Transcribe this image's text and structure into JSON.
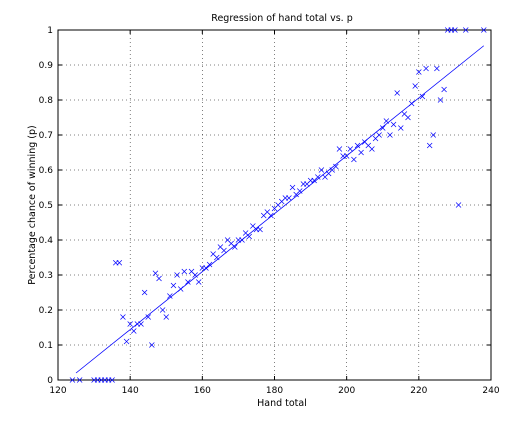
{
  "chart_data": {
    "type": "scatter",
    "title": "Regression of hand total vs. p",
    "xlabel": "Hand total",
    "ylabel": "Percentage chance of winning (p)",
    "xlim": [
      120,
      240
    ],
    "ylim": [
      0,
      1
    ],
    "x_ticks": [
      120,
      140,
      160,
      180,
      200,
      220,
      240
    ],
    "y_ticks": [
      0,
      0.1,
      0.2,
      0.3,
      0.4,
      0.5,
      0.6,
      0.7,
      0.8,
      0.9,
      1
    ],
    "x_tick_labels": [
      "120",
      "140",
      "160",
      "180",
      "200",
      "220",
      "240"
    ],
    "y_tick_labels": [
      "0",
      "0.1",
      "0.2",
      "0.3",
      "0.4",
      "0.5",
      "0.6",
      "0.7",
      "0.8",
      "0.9",
      "1"
    ],
    "grid": true,
    "marker": "x",
    "marker_color": "#0000ff",
    "series": [
      {
        "kind": "scatter",
        "points": [
          [
            124,
            0
          ],
          [
            126,
            0
          ],
          [
            130,
            0
          ],
          [
            131,
            0
          ],
          [
            132,
            0
          ],
          [
            133,
            0
          ],
          [
            134,
            0
          ],
          [
            135,
            0
          ],
          [
            136,
            0.335
          ],
          [
            137,
            0.335
          ],
          [
            138,
            0.18
          ],
          [
            139,
            0.11
          ],
          [
            140,
            0.16
          ],
          [
            141,
            0.14
          ],
          [
            142,
            0.16
          ],
          [
            143,
            0.16
          ],
          [
            144,
            0.25
          ],
          [
            145,
            0.18
          ],
          [
            146,
            0.1
          ],
          [
            147,
            0.305
          ],
          [
            148,
            0.29
          ],
          [
            149,
            0.2
          ],
          [
            150,
            0.18
          ],
          [
            151,
            0.24
          ],
          [
            152,
            0.27
          ],
          [
            153,
            0.3
          ],
          [
            154,
            0.26
          ],
          [
            155,
            0.31
          ],
          [
            156,
            0.28
          ],
          [
            157,
            0.31
          ],
          [
            158,
            0.3
          ],
          [
            159,
            0.28
          ],
          [
            160,
            0.32
          ],
          [
            161,
            0.32
          ],
          [
            162,
            0.33
          ],
          [
            163,
            0.36
          ],
          [
            164,
            0.35
          ],
          [
            165,
            0.38
          ],
          [
            166,
            0.37
          ],
          [
            167,
            0.4
          ],
          [
            168,
            0.39
          ],
          [
            169,
            0.38
          ],
          [
            170,
            0.4
          ],
          [
            171,
            0.4
          ],
          [
            172,
            0.42
          ],
          [
            173,
            0.41
          ],
          [
            174,
            0.44
          ],
          [
            175,
            0.43
          ],
          [
            176,
            0.43
          ],
          [
            177,
            0.47
          ],
          [
            178,
            0.48
          ],
          [
            179,
            0.47
          ],
          [
            180,
            0.49
          ],
          [
            181,
            0.5
          ],
          [
            182,
            0.51
          ],
          [
            183,
            0.52
          ],
          [
            184,
            0.52
          ],
          [
            185,
            0.55
          ],
          [
            186,
            0.53
          ],
          [
            187,
            0.54
          ],
          [
            188,
            0.56
          ],
          [
            189,
            0.56
          ],
          [
            190,
            0.57
          ],
          [
            191,
            0.57
          ],
          [
            192,
            0.58
          ],
          [
            193,
            0.6
          ],
          [
            194,
            0.58
          ],
          [
            195,
            0.59
          ],
          [
            196,
            0.6
          ],
          [
            197,
            0.61
          ],
          [
            198,
            0.66
          ],
          [
            199,
            0.64
          ],
          [
            200,
            0.64
          ],
          [
            201,
            0.66
          ],
          [
            202,
            0.63
          ],
          [
            203,
            0.67
          ],
          [
            204,
            0.65
          ],
          [
            205,
            0.68
          ],
          [
            206,
            0.67
          ],
          [
            207,
            0.66
          ],
          [
            208,
            0.69
          ],
          [
            209,
            0.7
          ],
          [
            210,
            0.72
          ],
          [
            211,
            0.74
          ],
          [
            212,
            0.7
          ],
          [
            213,
            0.73
          ],
          [
            214,
            0.82
          ],
          [
            215,
            0.72
          ],
          [
            216,
            0.76
          ],
          [
            217,
            0.75
          ],
          [
            218,
            0.79
          ],
          [
            219,
            0.84
          ],
          [
            220,
            0.88
          ],
          [
            221,
            0.81
          ],
          [
            222,
            0.89
          ],
          [
            223,
            0.67
          ],
          [
            224,
            0.7
          ],
          [
            225,
            0.89
          ],
          [
            226,
            0.8
          ],
          [
            227,
            0.83
          ],
          [
            228,
            1.0
          ],
          [
            229,
            1.0
          ],
          [
            230,
            1.0
          ],
          [
            231,
            0.5
          ],
          [
            233,
            1.0
          ],
          [
            238,
            1.0
          ]
        ]
      },
      {
        "kind": "regression_line",
        "color": "#0000ff",
        "points": [
          [
            125,
            0.02
          ],
          [
            238,
            0.955
          ]
        ]
      }
    ]
  }
}
